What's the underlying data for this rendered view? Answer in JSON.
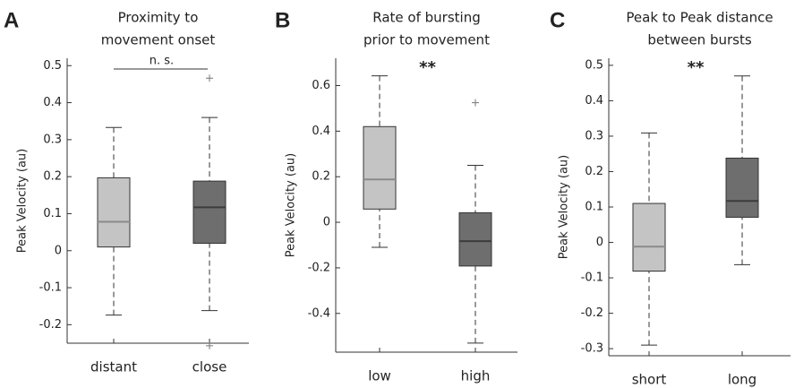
{
  "chart_data": [
    {
      "type": "box",
      "panel": "A",
      "title": [
        "Proximity to",
        "movement onset"
      ],
      "ylabel": "Peak Velocity (au)",
      "categories": [
        "distant",
        "close"
      ],
      "boxes": [
        {
          "whislo": -0.174,
          "q1": 0.01,
          "med": 0.078,
          "q3": 0.197,
          "whishi": 0.333,
          "fliers": []
        },
        {
          "whislo": -0.162,
          "q1": 0.02,
          "med": 0.117,
          "q3": 0.188,
          "whishi": 0.36,
          "fliers": [
            0.466,
            -0.257
          ]
        }
      ],
      "box_colors": [
        "#c4c4c4",
        "#6e6e6e"
      ],
      "median_colors": [
        "#8a8a8a",
        "#3c3c3c"
      ],
      "ylim": [
        -0.25,
        0.52
      ],
      "yticks": [
        -0.2,
        -0.1,
        0,
        0.1,
        0.2,
        0.3,
        0.4,
        0.5
      ],
      "annotation": "n. s.",
      "bracket": true
    },
    {
      "type": "box",
      "panel": "B",
      "title": [
        "Rate of bursting",
        "prior to movement"
      ],
      "ylabel": "Peak Velocity (au)",
      "categories": [
        "low",
        "high"
      ],
      "boxes": [
        {
          "whislo": -0.11,
          "q1": 0.058,
          "med": 0.188,
          "q3": 0.42,
          "whishi": 0.643,
          "fliers": []
        },
        {
          "whislo": -0.53,
          "q1": -0.192,
          "med": -0.083,
          "q3": 0.042,
          "whishi": 0.25,
          "fliers": [
            0.525
          ]
        }
      ],
      "box_colors": [
        "#c4c4c4",
        "#6e6e6e"
      ],
      "median_colors": [
        "#8a8a8a",
        "#3c3c3c"
      ],
      "ylim": [
        -0.57,
        0.72
      ],
      "yticks": [
        -0.4,
        -0.2,
        0,
        0.2,
        0.4,
        0.6
      ],
      "annotation": "**",
      "bracket": false
    },
    {
      "type": "box",
      "panel": "C",
      "title": [
        "Peak to Peak distance",
        "between bursts"
      ],
      "ylabel": "Peak Velocity (au)",
      "categories": [
        "short",
        "long"
      ],
      "boxes": [
        {
          "whislo": -0.29,
          "q1": -0.081,
          "med": -0.012,
          "q3": 0.11,
          "whishi": 0.309,
          "fliers": []
        },
        {
          "whislo": -0.063,
          "q1": 0.071,
          "med": 0.117,
          "q3": 0.238,
          "whishi": 0.47,
          "fliers": []
        }
      ],
      "box_colors": [
        "#c4c4c4",
        "#6e6e6e"
      ],
      "median_colors": [
        "#8a8a8a",
        "#3c3c3c"
      ],
      "ylim": [
        -0.32,
        0.52
      ],
      "yticks": [
        -0.3,
        -0.2,
        -0.1,
        0,
        0.1,
        0.2,
        0.3,
        0.4,
        0.5
      ],
      "annotation": "**",
      "bracket": false
    }
  ]
}
